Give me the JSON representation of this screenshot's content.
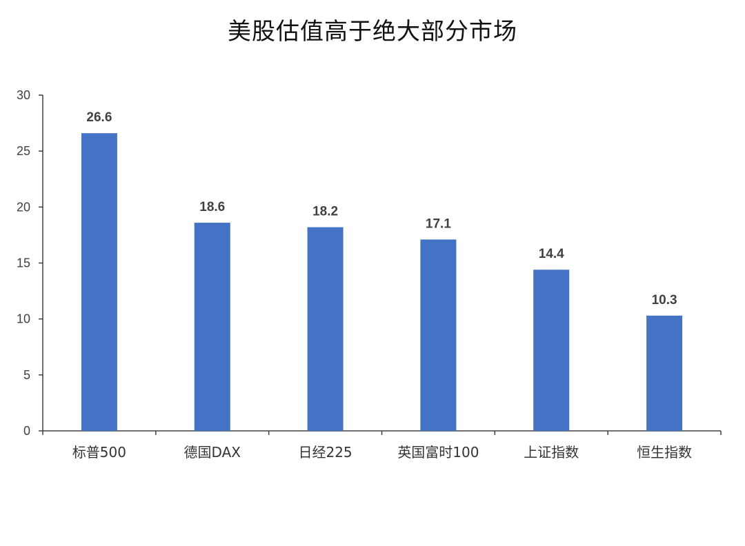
{
  "chart_data": {
    "type": "bar",
    "title": "美股估值高于绝大部分市场",
    "categories": [
      "标普500",
      "德国DAX",
      "日经225",
      "英国富时100",
      "上证指数",
      "恒生指数"
    ],
    "values": [
      26.6,
      18.6,
      18.2,
      17.1,
      14.4,
      10.3
    ],
    "data_labels": [
      "26.6",
      "18.6",
      "18.2",
      "17.1",
      "14.4",
      "10.3"
    ],
    "ylim": [
      0,
      30
    ],
    "yticks": [
      0,
      5,
      10,
      15,
      20,
      25,
      30
    ],
    "xlabel": "",
    "ylabel": "",
    "grid": false,
    "legend": "none",
    "colors": {
      "bar": "#4472C4",
      "axis": "#404040"
    }
  }
}
